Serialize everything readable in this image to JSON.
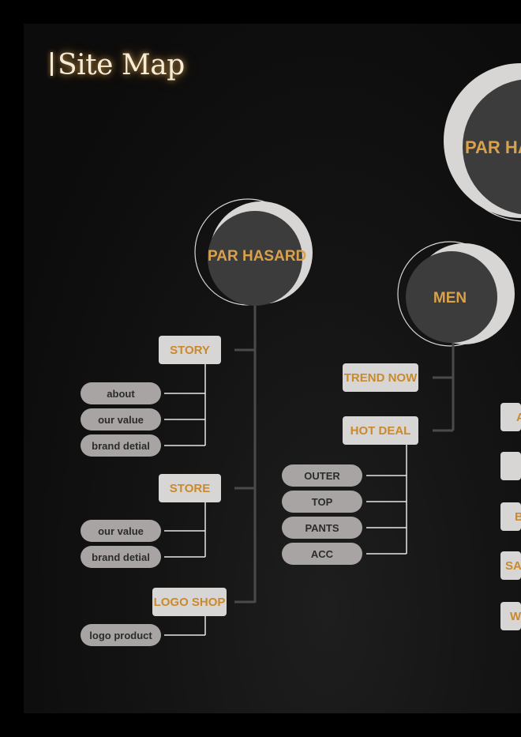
{
  "page_title": "Site Map",
  "circles": {
    "top_right": "PAR HASARD",
    "par_hasard": "PAR HASARD",
    "men": "MEN"
  },
  "par_hasard_branch": {
    "story": {
      "label": "STORY",
      "items": [
        "about",
        "our value",
        "brand detial"
      ]
    },
    "store": {
      "label": "STORE",
      "items": [
        "our value",
        "brand detial"
      ]
    },
    "logo_shop": {
      "label": "LOGO SHOP",
      "items": [
        "logo product"
      ]
    }
  },
  "men_branch": {
    "trend_now": {
      "label": "TREND NOW"
    },
    "hot_deal": {
      "label": "HOT DEAL",
      "items": [
        "OUTER",
        "TOP",
        "PANTS",
        "ACC"
      ]
    }
  },
  "right_edge_boxes": [
    "A",
    "",
    "B",
    "SA",
    "W"
  ],
  "colors": {
    "accent": "#d9a24a",
    "box": "#d8d6d5",
    "pill": "#a8a4a4",
    "circle": "#3c3c3c",
    "line": "#4a4a4a"
  }
}
